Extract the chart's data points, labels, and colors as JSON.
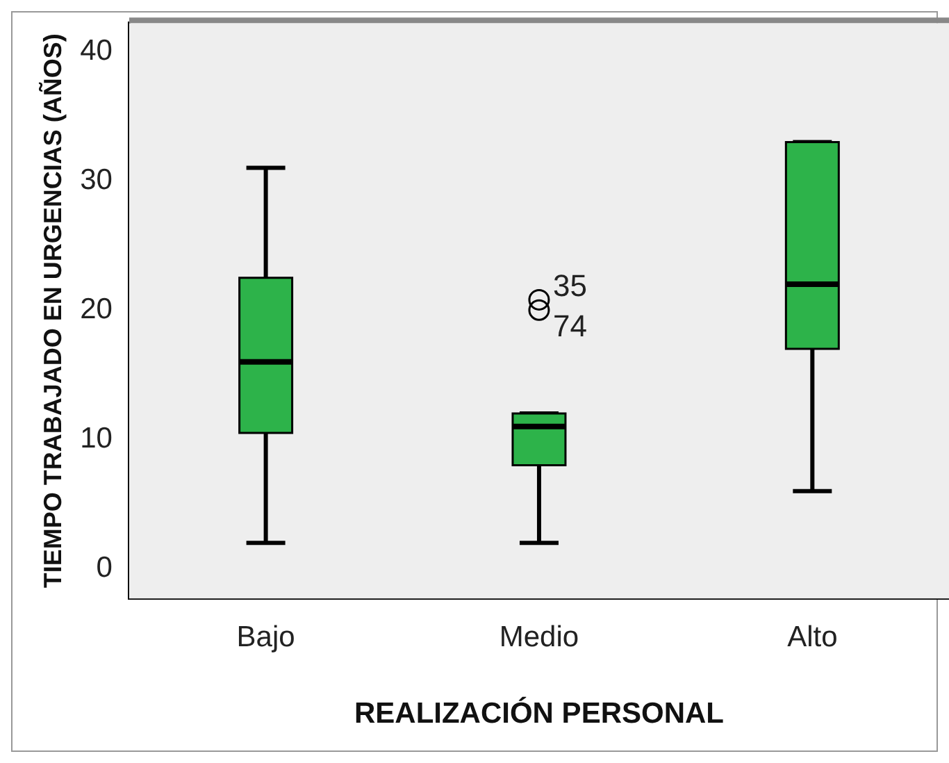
{
  "chart_data": {
    "type": "box",
    "xlabel": "REALIZACIÓN PERSONAL",
    "ylabel": "TIEMPO TRABAJADO EN URGENCIAS (AÑOS)",
    "categories": [
      "Bajo",
      "Medio",
      "Alto"
    ],
    "color": "#2db34a",
    "boxes": [
      {
        "low": 2,
        "q1": 10.5,
        "median": 16,
        "q3": 22.5,
        "high": 31
      },
      {
        "low": 2,
        "q1": 8,
        "median": 11,
        "q3": 12,
        "high": 12,
        "outliers": [
          20.8,
          20
        ]
      },
      {
        "low": 6,
        "q1": 17,
        "median": 22,
        "q3": 33,
        "high": 33
      }
    ],
    "ylim": [
      -2.3,
      42.2
    ],
    "yticks": [
      0,
      10,
      20,
      30,
      40
    ],
    "annotations": [
      "35",
      "74"
    ]
  }
}
